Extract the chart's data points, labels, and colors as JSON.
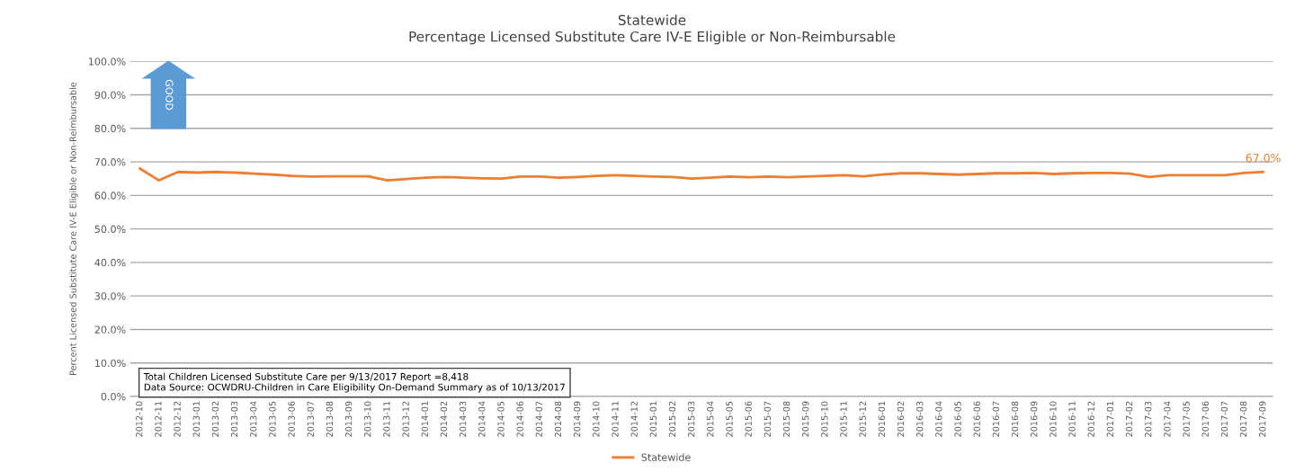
{
  "chart_data": {
    "type": "line",
    "title": "Statewide",
    "subtitle": "Percentage Licensed Substitute Care IV-E Eligible or Non-Reimbursable",
    "ylabel": "Percent Licensed Substitute Care IV-E Eligible or Non-Reimbursable",
    "categories": [
      "2012-10",
      "2012-11",
      "2012-12",
      "2013-01",
      "2013-02",
      "2013-03",
      "2013-04",
      "2013-05",
      "2013-06",
      "2013-07",
      "2013-08",
      "2013-09",
      "2013-10",
      "2013-11",
      "2013-12",
      "2014-01",
      "2014-02",
      "2014-03",
      "2014-04",
      "2014-05",
      "2014-06",
      "2014-07",
      "2014-08",
      "2014-09",
      "2014-10",
      "2014-11",
      "2014-12",
      "2015-01",
      "2015-02",
      "2015-03",
      "2015-04",
      "2015-05",
      "2015-06",
      "2015-07",
      "2015-08",
      "2015-09",
      "2015-10",
      "2015-11",
      "2015-12",
      "2016-01",
      "2016-02",
      "2016-03",
      "2016-04",
      "2016-05",
      "2016-06",
      "2016-07",
      "2016-08",
      "2016-09",
      "2016-10",
      "2016-11",
      "2016-12",
      "2017-01",
      "2017-02",
      "2017-03",
      "2017-04",
      "2017-05",
      "2017-06",
      "2017-07",
      "2017-08",
      "2017-09"
    ],
    "series": [
      {
        "name": "Statewide",
        "color": "#ed7d31",
        "values": [
          68.0,
          64.5,
          67.0,
          66.8,
          67.0,
          66.8,
          66.5,
          66.2,
          65.8,
          65.6,
          65.7,
          65.7,
          65.7,
          64.5,
          64.9,
          65.3,
          65.5,
          65.3,
          65.1,
          65.0,
          65.6,
          65.6,
          65.3,
          65.5,
          65.8,
          66.0,
          65.8,
          65.6,
          65.5,
          65.0,
          65.3,
          65.6,
          65.4,
          65.6,
          65.4,
          65.6,
          65.8,
          66.0,
          65.7,
          66.2,
          66.6,
          66.6,
          66.4,
          66.2,
          66.4,
          66.6,
          66.6,
          66.7,
          66.4,
          66.6,
          66.7,
          66.7,
          66.5,
          65.5,
          66.0,
          66.0,
          66.0,
          66.0,
          66.7,
          67.0
        ],
        "value_labels": [
          null,
          null,
          null,
          null,
          null,
          null,
          null,
          null,
          null,
          null,
          null,
          null,
          null,
          null,
          null,
          null,
          null,
          null,
          null,
          null,
          null,
          null,
          null,
          null,
          null,
          null,
          null,
          null,
          null,
          null,
          null,
          null,
          null,
          null,
          null,
          null,
          null,
          null,
          null,
          null,
          null,
          null,
          null,
          null,
          null,
          null,
          null,
          null,
          null,
          null,
          null,
          null,
          null,
          null,
          null,
          null,
          null,
          null,
          null,
          "67.0%"
        ]
      }
    ],
    "ylim": [
      0,
      100
    ],
    "yticks": [
      {
        "value": 0,
        "label": "0.0%"
      },
      {
        "value": 10,
        "label": "10.0%"
      },
      {
        "value": 20,
        "label": "20.0%"
      },
      {
        "value": 30,
        "label": "30.0%"
      },
      {
        "value": 40,
        "label": "40.0%"
      },
      {
        "value": 50,
        "label": "50.0%"
      },
      {
        "value": 60,
        "label": "60.0%"
      },
      {
        "value": 70,
        "label": "70.0%"
      },
      {
        "value": 80,
        "label": "80.0%"
      },
      {
        "value": 90,
        "label": "90.0%"
      },
      {
        "value": 100,
        "label": "100.0%"
      }
    ],
    "grid": "y",
    "legend": "bottom",
    "marker": "none",
    "line_style": "solid",
    "annotations": [
      "GOOD",
      "Total Children Licensed Substitute Care per 9/13/2017 Report =8,418",
      "Data Source: OCWDRU-Children in Care Eligibility On-Demand Summary as of 10/13/2017"
    ]
  }
}
